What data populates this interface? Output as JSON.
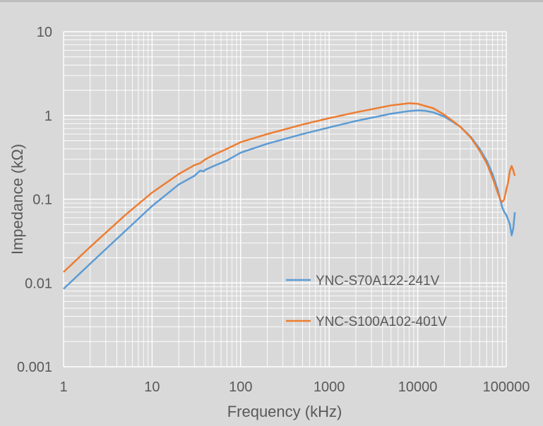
{
  "chart_data": {
    "type": "line",
    "xlabel": "Frequency (kHz)",
    "ylabel": "Impedance (kΩ)",
    "x_scale": "log",
    "y_scale": "log",
    "xlim": [
      1,
      100000
    ],
    "ylim": [
      0.001,
      10
    ],
    "grid": true,
    "legend_position": "bottom-right inside plot",
    "x_ticks": [
      1,
      10,
      100,
      1000,
      10000,
      100000
    ],
    "x_tick_labels": [
      "1",
      "10",
      "100",
      "1000",
      "10000",
      "100000"
    ],
    "y_ticks": [
      0.001,
      0.01,
      0.1,
      1,
      10
    ],
    "y_tick_labels": [
      "0.001",
      "0.01",
      "0.1",
      "1",
      "10"
    ],
    "colors": {
      "background": "#d9d9d9",
      "grid": "#ffffff",
      "text": "#595959"
    },
    "series": [
      {
        "name": "YNC-S70A122-241V",
        "color": "#5b9bd5",
        "points": [
          [
            1,
            0.0085
          ],
          [
            2,
            0.017
          ],
          [
            5,
            0.042
          ],
          [
            10,
            0.083
          ],
          [
            20,
            0.15
          ],
          [
            30,
            0.19
          ],
          [
            35,
            0.22
          ],
          [
            38,
            0.215
          ],
          [
            40,
            0.225
          ],
          [
            50,
            0.25
          ],
          [
            70,
            0.29
          ],
          [
            100,
            0.36
          ],
          [
            200,
            0.46
          ],
          [
            500,
            0.6
          ],
          [
            1000,
            0.72
          ],
          [
            2000,
            0.86
          ],
          [
            5000,
            1.05
          ],
          [
            8000,
            1.13
          ],
          [
            10000,
            1.15
          ],
          [
            12000,
            1.14
          ],
          [
            15000,
            1.09
          ],
          [
            20000,
            0.97
          ],
          [
            30000,
            0.74
          ],
          [
            40000,
            0.55
          ],
          [
            50000,
            0.4
          ],
          [
            60000,
            0.29
          ],
          [
            70000,
            0.2
          ],
          [
            80000,
            0.13
          ],
          [
            90000,
            0.08
          ],
          [
            95000,
            0.07
          ],
          [
            100000,
            0.065
          ],
          [
            110000,
            0.05
          ],
          [
            115000,
            0.037
          ],
          [
            120000,
            0.045
          ],
          [
            125000,
            0.07
          ]
        ]
      },
      {
        "name": "YNC-S100A102-401V",
        "color": "#ed7d31",
        "points": [
          [
            1,
            0.0135
          ],
          [
            2,
            0.027
          ],
          [
            5,
            0.065
          ],
          [
            10,
            0.12
          ],
          [
            20,
            0.2
          ],
          [
            30,
            0.255
          ],
          [
            35,
            0.27
          ],
          [
            40,
            0.3
          ],
          [
            50,
            0.34
          ],
          [
            70,
            0.4
          ],
          [
            100,
            0.48
          ],
          [
            200,
            0.6
          ],
          [
            500,
            0.78
          ],
          [
            1000,
            0.93
          ],
          [
            2000,
            1.09
          ],
          [
            5000,
            1.32
          ],
          [
            8000,
            1.4
          ],
          [
            10000,
            1.38
          ],
          [
            15000,
            1.22
          ],
          [
            20000,
            1.02
          ],
          [
            30000,
            0.74
          ],
          [
            40000,
            0.54
          ],
          [
            50000,
            0.38
          ],
          [
            60000,
            0.27
          ],
          [
            70000,
            0.18
          ],
          [
            80000,
            0.12
          ],
          [
            85000,
            0.1
          ],
          [
            90000,
            0.093
          ],
          [
            95000,
            0.1
          ],
          [
            100000,
            0.13
          ],
          [
            105000,
            0.16
          ],
          [
            110000,
            0.22
          ],
          [
            115000,
            0.25
          ],
          [
            120000,
            0.22
          ],
          [
            125000,
            0.19
          ]
        ]
      }
    ]
  }
}
